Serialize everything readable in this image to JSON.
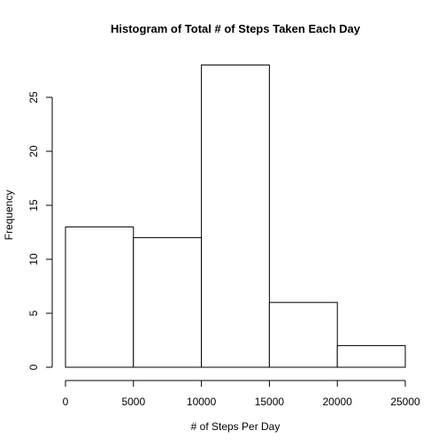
{
  "chart_data": {
    "type": "bar",
    "title": "Histogram of Total # of Steps Taken Each Day",
    "xlabel": "# of Steps Per Day",
    "ylabel": "Frequency",
    "bins": [
      {
        "from": 0,
        "to": 5000,
        "value": 13
      },
      {
        "from": 5000,
        "to": 10000,
        "value": 12
      },
      {
        "from": 10000,
        "to": 15000,
        "value": 28
      },
      {
        "from": 15000,
        "to": 20000,
        "value": 6
      },
      {
        "from": 20000,
        "to": 25000,
        "value": 2
      }
    ],
    "xlim": [
      0,
      25000
    ],
    "ylim": [
      0,
      28
    ],
    "xticks": [
      0,
      5000,
      10000,
      15000,
      20000,
      25000
    ],
    "yticks": [
      0,
      5,
      10,
      15,
      20,
      25
    ],
    "grid": false,
    "bar_fill": "#ffffff",
    "bar_stroke": "#000000"
  }
}
